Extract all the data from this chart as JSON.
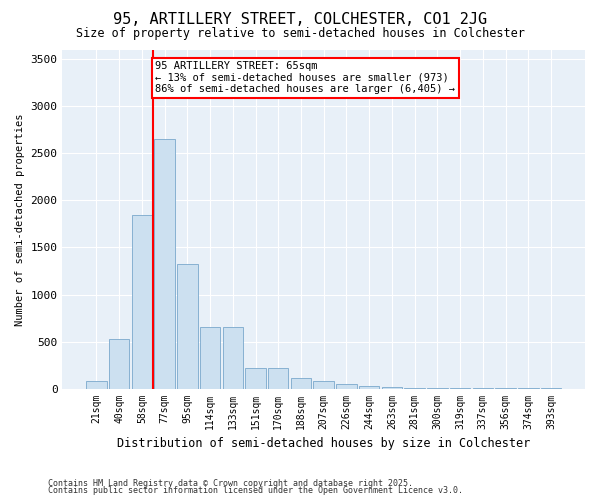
{
  "title1": "95, ARTILLERY STREET, COLCHESTER, CO1 2JG",
  "title2": "Size of property relative to semi-detached houses in Colchester",
  "xlabel": "Distribution of semi-detached houses by size in Colchester",
  "ylabel": "Number of semi-detached properties",
  "categories": [
    "21sqm",
    "40sqm",
    "58sqm",
    "77sqm",
    "95sqm",
    "114sqm",
    "133sqm",
    "151sqm",
    "170sqm",
    "188sqm",
    "207sqm",
    "226sqm",
    "244sqm",
    "263sqm",
    "281sqm",
    "300sqm",
    "319sqm",
    "337sqm",
    "356sqm",
    "374sqm",
    "393sqm"
  ],
  "values": [
    80,
    530,
    1850,
    2650,
    1320,
    650,
    650,
    220,
    220,
    110,
    80,
    50,
    30,
    15,
    10,
    5,
    3,
    2,
    2,
    1,
    1
  ],
  "bar_color": "#cce0f0",
  "bar_edge_color": "#7aa8cc",
  "vline_color": "red",
  "property_label": "95 ARTILLERY STREET: 65sqm",
  "annotation_line1": "← 13% of semi-detached houses are smaller (973)",
  "annotation_line2": "86% of semi-detached houses are larger (6,405) →",
  "annotation_box_color": "white",
  "annotation_box_edge": "red",
  "ylim": [
    0,
    3600
  ],
  "yticks": [
    0,
    500,
    1000,
    1500,
    2000,
    2500,
    3000,
    3500
  ],
  "footer1": "Contains HM Land Registry data © Crown copyright and database right 2025.",
  "footer2": "Contains public sector information licensed under the Open Government Licence v3.0.",
  "bg_color": "#ffffff",
  "plot_bg_color": "#e8f0f8",
  "grid_color": "#ffffff"
}
